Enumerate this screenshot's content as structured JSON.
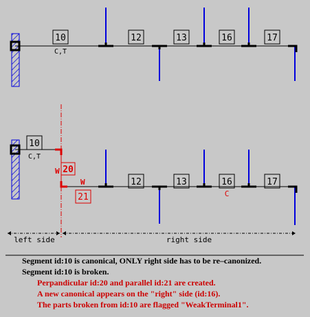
{
  "colors": {
    "black": "#000000",
    "blue": "#0000dd",
    "red": "#dd0000",
    "bg": "#c8c8c8"
  },
  "top_diagram": {
    "anchor_icon": "wall-hatched-icon",
    "segments": [
      {
        "id": "10",
        "sub": "C,T"
      },
      {
        "id": "12"
      },
      {
        "id": "13"
      },
      {
        "id": "16"
      },
      {
        "id": "17"
      }
    ]
  },
  "bottom_diagram": {
    "anchor_icon": "wall-hatched-icon",
    "first": {
      "id": "10",
      "sub": "C,T"
    },
    "perpendicular": {
      "id": "20",
      "flag": "W"
    },
    "parallel": {
      "id": "21",
      "flag": "W"
    },
    "segments": [
      {
        "id": "12"
      },
      {
        "id": "13"
      },
      {
        "id": "16",
        "sub": "C"
      },
      {
        "id": "17"
      }
    ],
    "left_label": "left side",
    "right_label": "right side"
  },
  "caption": [
    {
      "text": "Segment id:10 is canonical, ONLY right side has to be re–canonized.",
      "tone": "black"
    },
    {
      "text": "Segment id:10 is broken.",
      "tone": "black"
    },
    {
      "text": "Perpandicular id:20 and parallel id:21 are created.",
      "tone": "red"
    },
    {
      "text": "A new canonical appears on the \"right\" side (id:16).",
      "tone": "red"
    },
    {
      "text": "The parts broken from id:10 are flagged \"WeakTerminal1\".",
      "tone": "red"
    }
  ]
}
